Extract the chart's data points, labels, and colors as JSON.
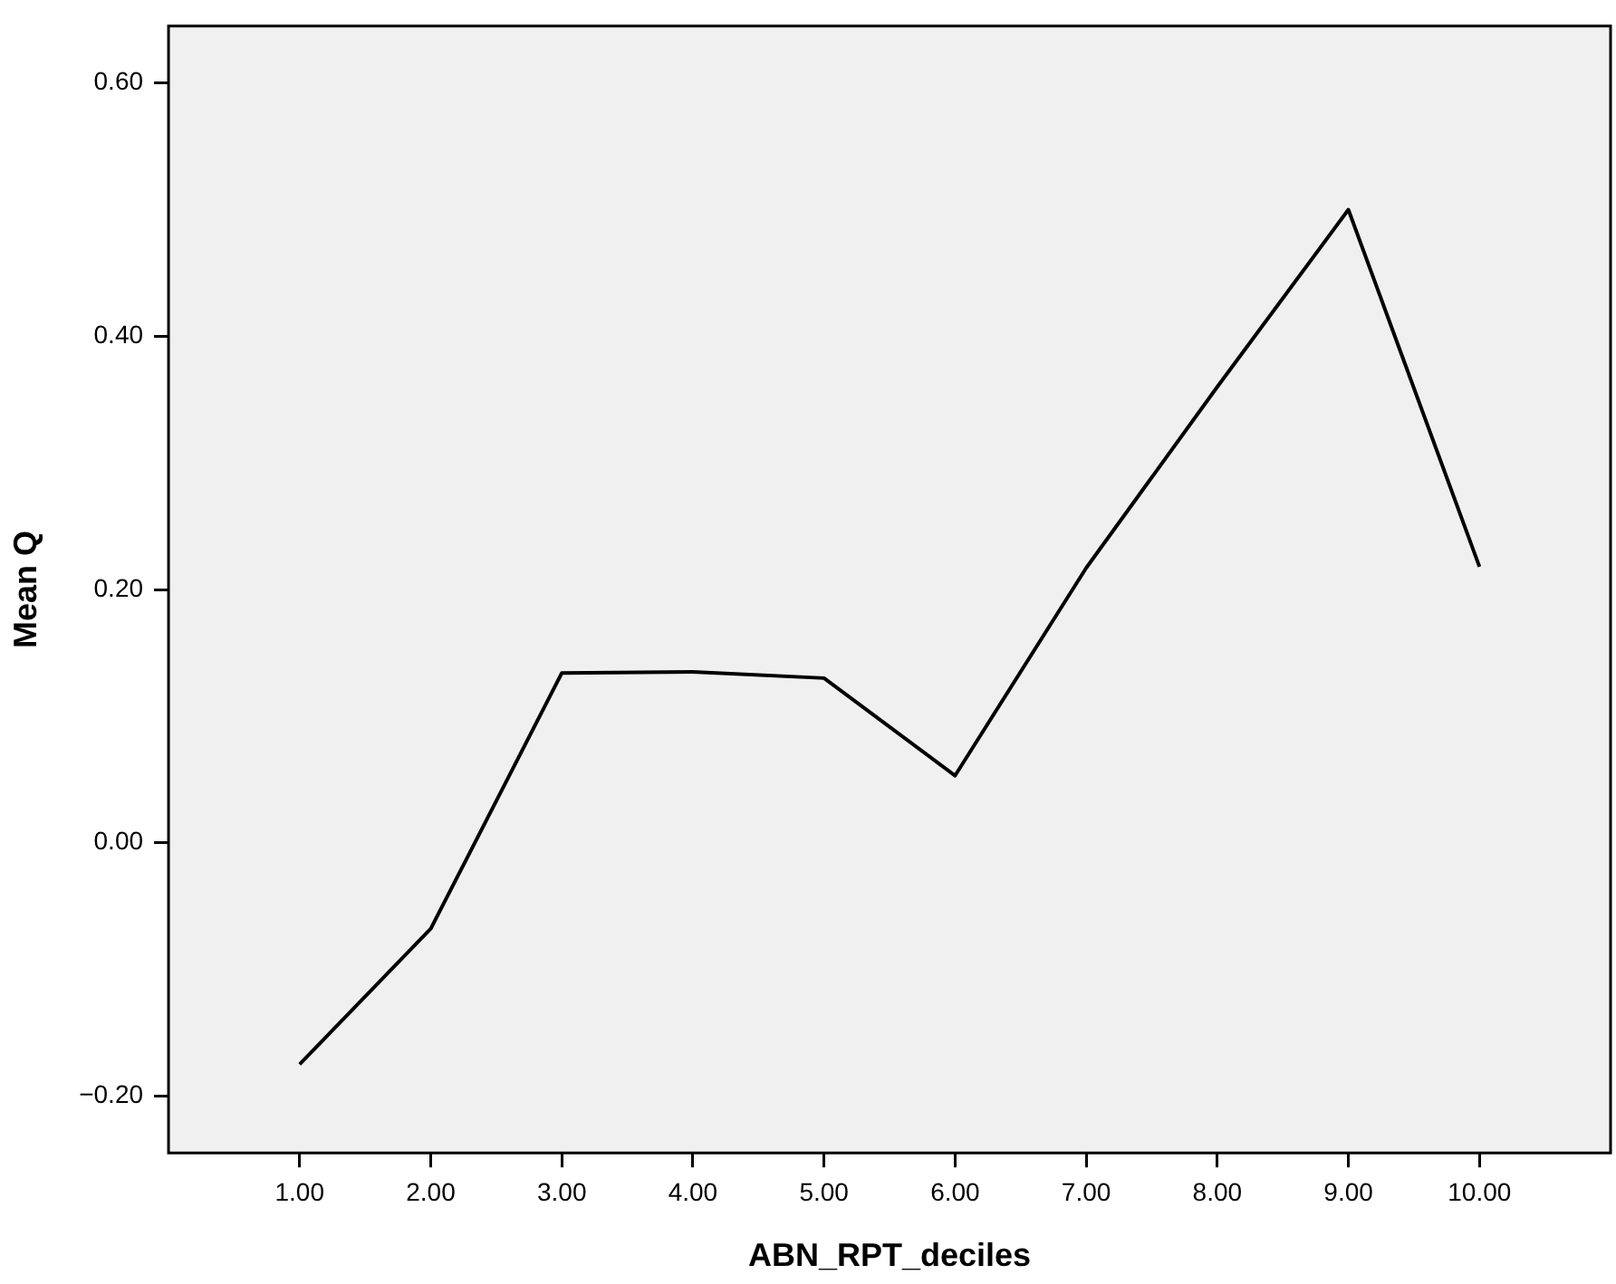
{
  "chart_data": {
    "type": "line",
    "xlabel": "ABN_RPT_deciles",
    "ylabel": "Mean Q",
    "categories": [
      "1.00",
      "2.00",
      "3.00",
      "4.00",
      "5.00",
      "6.00",
      "7.00",
      "8.00",
      "9.00",
      "10.00"
    ],
    "series": [
      {
        "color": "#000000",
        "values": [
          -0.175,
          -0.068,
          0.134,
          0.135,
          0.13,
          0.053,
          0.217,
          0.36,
          0.5,
          0.218
        ]
      }
    ],
    "ylim": [
      -0.245,
      0.645
    ],
    "yticks": [
      {
        "value": -0.2,
        "label": "−0.20"
      },
      {
        "value": 0,
        "label": "0.00"
      },
      {
        "value": 0.2,
        "label": "0.20"
      },
      {
        "value": 0.4,
        "label": "0.40"
      },
      {
        "value": 0.6,
        "label": "0.60"
      }
    ],
    "grid": false,
    "legend": false,
    "marker": "none",
    "line_style": "solid"
  }
}
